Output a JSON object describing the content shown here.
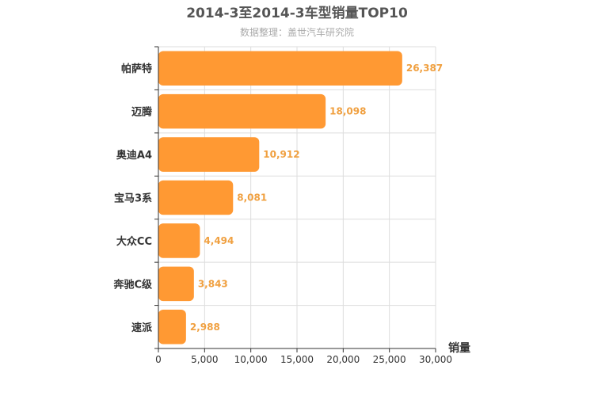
{
  "chart_data": {
    "type": "bar",
    "orientation": "horizontal",
    "title": "2014-3至2014-3车型销量TOP10",
    "subtitle": "数据整理：盖世汽车研究院",
    "xlabel": "销量",
    "ylabel": "",
    "categories": [
      "帕萨特",
      "迈腾",
      "奥迪A4",
      "宝马3系",
      "大众CC",
      "奔驰C级",
      "速派"
    ],
    "values": [
      26387,
      18098,
      10912,
      8081,
      4494,
      3843,
      2988
    ],
    "value_labels": [
      "26,387",
      "18,098",
      "10,912",
      "8,081",
      "4,494",
      "3,843",
      "2,988"
    ],
    "xlim": [
      0,
      30000
    ],
    "xticks": [
      0,
      5000,
      10000,
      15000,
      20000,
      25000,
      30000
    ],
    "xtick_labels": [
      "0",
      "5,000",
      "10,000",
      "15,000",
      "20,000",
      "25,000",
      "30,000"
    ],
    "grid": true,
    "legend": "none",
    "bar_color": "#ff9933",
    "label_color": "#f0a040"
  }
}
